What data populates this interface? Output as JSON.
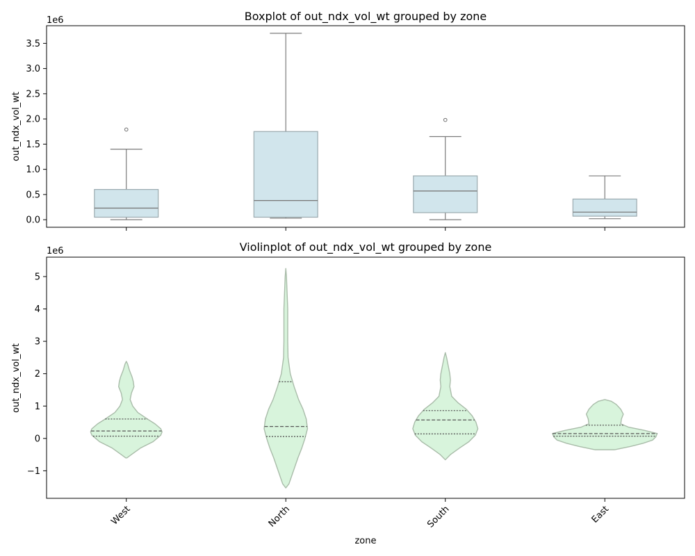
{
  "chart_data": [
    {
      "type": "box",
      "title": "Boxplot of out_ndx_vol_wt grouped by zone",
      "xlabel": "",
      "ylabel": "out_ndx_vol_wt",
      "scale_label": "1e6",
      "ylim": [
        -0.15,
        3.85
      ],
      "yticks": [
        0.0,
        0.5,
        1.0,
        1.5,
        2.0,
        2.5,
        3.0,
        3.5
      ],
      "ytick_labels": [
        "0.0",
        "0.5",
        "1.0",
        "1.5",
        "2.0",
        "2.5",
        "3.0",
        "3.5"
      ],
      "categories": [
        "West",
        "North",
        "South",
        "East"
      ],
      "boxes": [
        {
          "whisker_low": 0.0,
          "q1": 0.05,
          "median": 0.23,
          "q3": 0.6,
          "whisker_high": 1.4,
          "outliers": [
            1.79
          ]
        },
        {
          "whisker_low": 0.03,
          "q1": 0.05,
          "median": 0.38,
          "q3": 1.75,
          "whisker_high": 3.7,
          "outliers": []
        },
        {
          "whisker_low": 0.0,
          "q1": 0.14,
          "median": 0.57,
          "q3": 0.87,
          "whisker_high": 1.65,
          "outliers": [
            1.98
          ]
        },
        {
          "whisker_low": 0.02,
          "q1": 0.07,
          "median": 0.15,
          "q3": 0.41,
          "whisker_high": 0.87,
          "outliers": []
        }
      ],
      "colors": {
        "box_fill": "#d1e5ec",
        "box_edge": "#9aa9ae",
        "line": "#7a7a7a"
      }
    },
    {
      "type": "violin",
      "title": "Violinplot of out_ndx_vol_wt grouped by zone",
      "xlabel": "zone",
      "ylabel": "out_ndx_vol_wt",
      "scale_label": "1e6",
      "ylim": [
        -1.85,
        5.6
      ],
      "yticks": [
        -1,
        0,
        1,
        2,
        3,
        4,
        5
      ],
      "ytick_labels": [
        "−1",
        "0",
        "1",
        "2",
        "3",
        "4",
        "5"
      ],
      "categories": [
        "West",
        "North",
        "South",
        "East"
      ],
      "violins": [
        {
          "quartiles": [
            0.07,
            0.23,
            0.6
          ],
          "profile": [
            [
              -0.6,
              0.01
            ],
            [
              -0.5,
              0.08
            ],
            [
              -0.3,
              0.22
            ],
            [
              -0.1,
              0.42
            ],
            [
              0.0,
              0.48
            ],
            [
              0.1,
              0.54
            ],
            [
              0.2,
              0.56
            ],
            [
              0.3,
              0.54
            ],
            [
              0.45,
              0.45
            ],
            [
              0.6,
              0.33
            ],
            [
              0.8,
              0.18
            ],
            [
              1.0,
              0.1
            ],
            [
              1.2,
              0.06
            ],
            [
              1.4,
              0.08
            ],
            [
              1.6,
              0.12
            ],
            [
              1.75,
              0.11
            ],
            [
              1.9,
              0.09
            ],
            [
              2.1,
              0.05
            ],
            [
              2.3,
              0.02
            ],
            [
              2.38,
              0.0
            ]
          ]
        },
        {
          "quartiles": [
            0.06,
            0.37,
            1.75
          ],
          "profile": [
            [
              -1.53,
              0.0
            ],
            [
              -1.4,
              0.05
            ],
            [
              -1.0,
              0.12
            ],
            [
              -0.6,
              0.19
            ],
            [
              -0.3,
              0.25
            ],
            [
              0.0,
              0.3
            ],
            [
              0.3,
              0.34
            ],
            [
              0.6,
              0.32
            ],
            [
              0.9,
              0.27
            ],
            [
              1.2,
              0.2
            ],
            [
              1.6,
              0.13
            ],
            [
              2.0,
              0.07
            ],
            [
              2.5,
              0.035
            ],
            [
              3.0,
              0.03
            ],
            [
              3.5,
              0.03
            ],
            [
              4.0,
              0.03
            ],
            [
              4.5,
              0.02
            ],
            [
              5.0,
              0.01
            ],
            [
              5.25,
              0.0
            ]
          ]
        },
        {
          "quartiles": [
            0.14,
            0.57,
            0.86
          ],
          "profile": [
            [
              -0.66,
              0.0
            ],
            [
              -0.5,
              0.08
            ],
            [
              -0.3,
              0.22
            ],
            [
              -0.1,
              0.37
            ],
            [
              0.1,
              0.47
            ],
            [
              0.3,
              0.51
            ],
            [
              0.5,
              0.48
            ],
            [
              0.7,
              0.42
            ],
            [
              0.9,
              0.33
            ],
            [
              1.1,
              0.2
            ],
            [
              1.3,
              0.1
            ],
            [
              1.6,
              0.07
            ],
            [
              1.8,
              0.08
            ],
            [
              2.0,
              0.07
            ],
            [
              2.3,
              0.04
            ],
            [
              2.5,
              0.02
            ],
            [
              2.65,
              0.0
            ]
          ]
        },
        {
          "quartiles": [
            0.07,
            0.15,
            0.41
          ],
          "profile": [
            [
              -0.35,
              0.15
            ],
            [
              -0.25,
              0.4
            ],
            [
              -0.15,
              0.6
            ],
            [
              -0.05,
              0.75
            ],
            [
              0.05,
              0.8
            ],
            [
              0.15,
              0.82
            ],
            [
              0.25,
              0.62
            ],
            [
              0.35,
              0.37
            ],
            [
              0.45,
              0.25
            ],
            [
              0.6,
              0.26
            ],
            [
              0.75,
              0.29
            ],
            [
              0.9,
              0.25
            ],
            [
              1.05,
              0.18
            ],
            [
              1.15,
              0.1
            ],
            [
              1.2,
              0.0
            ]
          ]
        }
      ],
      "colors": {
        "violin_fill": "#d8f4dc",
        "violin_edge": "#a9bca9",
        "line": "#555555"
      }
    }
  ]
}
